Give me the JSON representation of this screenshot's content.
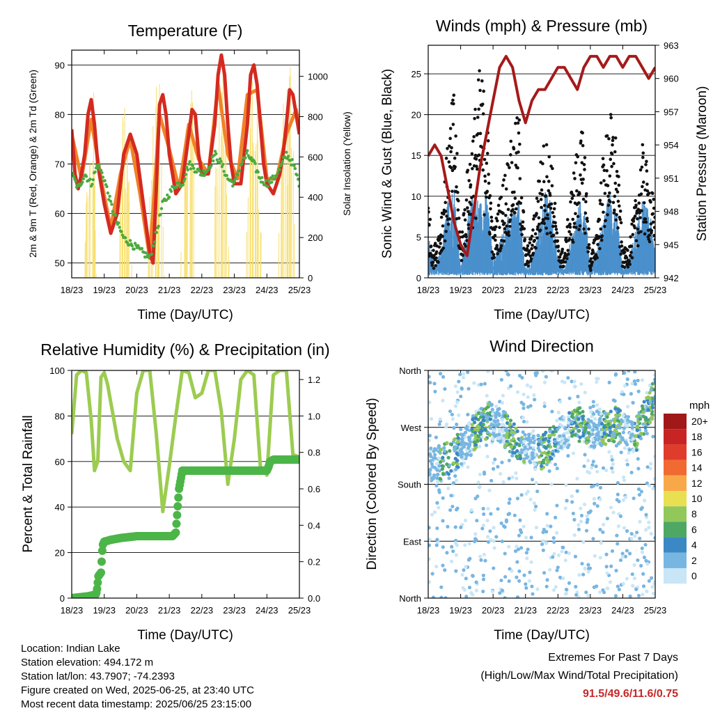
{
  "chart_data": [
    {
      "type": "line",
      "title": "Temperature (F)",
      "xlabel": "Time (Day/UTC)",
      "ylabel": "2m & 9m T (Red, Orange) & 2m Td (Green)",
      "ylabel_right": "Solar Insolation (Yellow)",
      "x_ticks": [
        "18/23",
        "19/23",
        "20/23",
        "21/23",
        "22/23",
        "23/23",
        "24/23",
        "25/23"
      ],
      "xlim": [
        0,
        7
      ],
      "ylim": [
        47,
        93
      ],
      "y_ticks": [
        50,
        60,
        70,
        80,
        90
      ],
      "ylim_right": [
        0,
        1130
      ],
      "y_ticks_right": [
        0,
        200,
        400,
        600,
        800,
        1000
      ],
      "grid": "horizontal",
      "series": [
        {
          "name": "2m T",
          "color": "#d42a20",
          "x": [
            0,
            0.1,
            0.2,
            0.3,
            0.4,
            0.5,
            0.6,
            0.7,
            0.8,
            0.9,
            1.0,
            1.2,
            1.4,
            1.6,
            1.8,
            2.0,
            2.2,
            2.4,
            2.5,
            2.6,
            2.7,
            2.8,
            2.9,
            3.0,
            3.2,
            3.4,
            3.6,
            3.7,
            3.8,
            3.9,
            4.0,
            4.2,
            4.4,
            4.5,
            4.6,
            4.7,
            4.8,
            4.9,
            5.0,
            5.2,
            5.4,
            5.5,
            5.6,
            5.7,
            5.8,
            5.9,
            6.0,
            6.2,
            6.4,
            6.5,
            6.6,
            6.7,
            6.8,
            6.9,
            7.0
          ],
          "values": [
            77,
            68,
            65,
            68,
            72,
            80,
            83,
            78,
            70,
            66,
            62,
            56,
            60,
            72,
            76,
            72,
            62,
            52,
            50,
            65,
            82,
            84,
            80,
            72,
            64,
            66,
            76,
            81,
            80,
            72,
            68,
            68,
            78,
            88,
            92,
            88,
            78,
            70,
            66,
            66,
            78,
            88,
            90,
            86,
            78,
            70,
            66,
            64,
            68,
            72,
            78,
            85,
            84,
            80,
            76
          ]
        },
        {
          "name": "9m T",
          "color": "#f0822a",
          "x": [
            0,
            0.3,
            0.6,
            0.9,
            1.2,
            1.5,
            1.8,
            2.1,
            2.4,
            2.7,
            3.0,
            3.3,
            3.6,
            3.9,
            4.2,
            4.5,
            4.8,
            5.1,
            5.4,
            5.7,
            6.0,
            6.3,
            6.6,
            6.9,
            7.0
          ],
          "values": [
            76,
            67,
            79,
            67,
            57,
            68,
            75,
            64,
            51,
            80,
            73,
            65,
            78,
            71,
            68,
            86,
            72,
            67,
            84,
            85,
            67,
            67,
            76,
            81,
            77
          ]
        },
        {
          "name": "2m Td",
          "color": "#4caa3e",
          "x": [
            0,
            0.2,
            0.4,
            0.6,
            0.8,
            1.0,
            1.2,
            1.4,
            1.6,
            1.8,
            2.0,
            2.2,
            2.4,
            2.6,
            2.8,
            3.0,
            3.2,
            3.4,
            3.6,
            3.8,
            4.0,
            4.2,
            4.4,
            4.6,
            4.8,
            5.0,
            5.2,
            5.4,
            5.6,
            5.8,
            6.0,
            6.2,
            6.4,
            6.6,
            6.8,
            7.0
          ],
          "values": [
            68,
            65,
            68,
            66,
            70,
            67,
            62,
            58,
            55,
            54,
            53,
            52,
            51,
            56,
            62,
            64,
            66,
            66,
            70,
            69,
            68,
            69,
            72,
            70,
            67,
            66,
            70,
            72,
            70,
            67,
            66,
            67,
            69,
            72,
            70,
            66
          ]
        },
        {
          "name": "Solar Insolation",
          "axis": "right",
          "color": "#f8e070",
          "x": [
            0.35,
            0.5,
            0.65,
            0.75,
            1.3,
            1.5,
            1.7,
            1.85,
            2.3,
            2.5,
            2.7,
            2.85,
            3.3,
            3.5,
            3.7,
            3.85,
            4.3,
            4.5,
            4.7,
            4.85,
            5.3,
            5.5,
            5.7,
            5.85,
            6.3,
            6.5,
            6.7,
            6.85,
            6.95
          ],
          "values": [
            0,
            700,
            1100,
            0,
            0,
            720,
            1070,
            0,
            0,
            900,
            1060,
            0,
            0,
            800,
            1000,
            0,
            0,
            1000,
            1050,
            0,
            0,
            1000,
            1050,
            0,
            0,
            900,
            1080,
            600,
            200
          ]
        }
      ]
    },
    {
      "type": "scatter",
      "title": "Winds (mph) & Pressure (mb)",
      "xlabel": "Time (Day/UTC)",
      "ylabel": "Sonic Wind & Gust (Blue, Black)",
      "ylabel_right": "Station Pressure (Maroon)",
      "x_ticks": [
        "18/23",
        "19/23",
        "20/23",
        "21/23",
        "22/23",
        "23/23",
        "24/23",
        "25/23"
      ],
      "xlim": [
        0,
        7
      ],
      "ylim": [
        0,
        28.5
      ],
      "y_ticks": [
        0,
        5,
        10,
        15,
        20,
        25
      ],
      "ylim_right": [
        942,
        963
      ],
      "y_ticks_right": [
        942,
        945,
        948,
        951,
        954,
        957,
        960,
        963
      ],
      "grid": "horizontal",
      "series": [
        {
          "name": "Sonic Wind",
          "color": "#4a90cc",
          "x": [
            0,
            0.2,
            0.4,
            0.6,
            0.8,
            1.0,
            1.2,
            1.4,
            1.6,
            1.8,
            2.0,
            2.2,
            2.4,
            2.6,
            2.8,
            3.0,
            3.2,
            3.4,
            3.6,
            3.8,
            4.0,
            4.2,
            4.4,
            4.6,
            4.8,
            5.0,
            5.2,
            5.4,
            5.6,
            5.8,
            6.0,
            6.2,
            6.4,
            6.6,
            6.8,
            7.0
          ],
          "values": [
            5,
            1,
            3,
            8,
            10,
            1,
            6,
            9,
            8,
            9,
            2,
            4,
            6,
            7,
            8,
            1,
            2,
            5,
            9,
            8,
            2,
            1,
            4,
            7,
            9,
            1,
            3,
            6,
            9,
            7,
            1,
            2,
            5,
            8,
            7,
            4
          ]
        },
        {
          "name": "Gust",
          "color": "#111111",
          "x": [
            0,
            0.15,
            0.35,
            0.6,
            0.8,
            1.0,
            1.2,
            1.4,
            1.6,
            1.8,
            2.0,
            2.2,
            2.4,
            2.6,
            2.8,
            3.0,
            3.2,
            3.4,
            3.6,
            3.8,
            4.0,
            4.2,
            4.4,
            4.6,
            4.8,
            5.0,
            5.2,
            5.4,
            5.6,
            5.8,
            6.0,
            6.2,
            6.4,
            6.6,
            6.8,
            7.0
          ],
          "values": [
            9,
            3,
            6,
            15,
            22,
            4,
            12,
            18,
            24,
            20,
            5,
            9,
            13,
            16,
            19,
            3,
            5,
            12,
            16,
            14,
            4,
            3,
            10,
            15,
            17,
            2,
            6,
            14,
            19,
            16,
            3,
            4,
            9,
            15,
            12,
            8
          ]
        },
        {
          "name": "Station Pressure",
          "axis": "right",
          "color": "#a51a1a",
          "x": [
            0,
            0.2,
            0.4,
            0.6,
            0.8,
            1.0,
            1.2,
            1.4,
            1.6,
            1.8,
            2.0,
            2.2,
            2.4,
            2.6,
            2.8,
            3.0,
            3.2,
            3.4,
            3.6,
            3.8,
            4.0,
            4.2,
            4.4,
            4.6,
            4.8,
            5.0,
            5.2,
            5.4,
            5.6,
            5.8,
            6.0,
            6.2,
            6.4,
            6.6,
            6.8,
            7.0
          ],
          "values": [
            953,
            954,
            953,
            950,
            947,
            945,
            944,
            948,
            952,
            955,
            958,
            961,
            962,
            961,
            958,
            956,
            958,
            959,
            959,
            960,
            961,
            961,
            960,
            959,
            961,
            962,
            962,
            961,
            962,
            962,
            961,
            962,
            962,
            961,
            960,
            961
          ]
        }
      ]
    },
    {
      "type": "line",
      "title": "Relative Humidity (%) & Precipitation (in)",
      "xlabel": "Time (Day/UTC)",
      "ylabel": "Percent & Total Rainfall",
      "x_ticks": [
        "18/23",
        "19/23",
        "20/23",
        "21/23",
        "22/23",
        "23/23",
        "24/23",
        "25/23"
      ],
      "xlim": [
        0,
        7
      ],
      "ylim": [
        0,
        100
      ],
      "y_ticks": [
        0,
        20,
        40,
        60,
        80,
        100
      ],
      "ylim_right": [
        0,
        1.25
      ],
      "y_ticks_right": [
        "0.0",
        "0.2",
        "0.4",
        "0.6",
        "0.8",
        "1.0",
        "1.2"
      ],
      "grid": "horizontal",
      "series": [
        {
          "name": "Relative Humidity",
          "color": "#9ccc50",
          "x": [
            0,
            0.15,
            0.3,
            0.45,
            0.6,
            0.7,
            0.8,
            0.9,
            1.0,
            1.1,
            1.2,
            1.4,
            1.6,
            1.8,
            2.0,
            2.2,
            2.4,
            2.6,
            2.8,
            3.0,
            3.2,
            3.4,
            3.6,
            3.8,
            4.0,
            4.2,
            4.4,
            4.6,
            4.8,
            5.0,
            5.2,
            5.4,
            5.6,
            5.8,
            6.0,
            6.2,
            6.4,
            6.6,
            6.8,
            7.0
          ],
          "values": [
            72,
            98,
            100,
            99,
            78,
            56,
            60,
            97,
            99,
            94,
            86,
            70,
            60,
            56,
            90,
            100,
            100,
            72,
            38,
            58,
            80,
            100,
            99,
            88,
            90,
            100,
            100,
            82,
            50,
            70,
            96,
            100,
            98,
            58,
            54,
            98,
            100,
            100,
            63,
            62
          ]
        },
        {
          "name": "Total Rainfall",
          "axis": "right",
          "color": "#4cb548",
          "x": [
            0,
            0.5,
            0.75,
            0.78,
            0.82,
            0.9,
            0.95,
            1.0,
            1.2,
            1.5,
            2.0,
            2.5,
            3.0,
            3.1,
            3.2,
            3.25,
            3.3,
            3.4,
            3.6,
            4.0,
            4.5,
            5.0,
            5.5,
            6.0,
            6.05,
            6.1,
            6.2,
            6.5,
            7.0
          ],
          "values": [
            0.0,
            0.01,
            0.02,
            0.05,
            0.12,
            0.14,
            0.29,
            0.31,
            0.32,
            0.33,
            0.34,
            0.34,
            0.34,
            0.34,
            0.36,
            0.48,
            0.6,
            0.7,
            0.7,
            0.7,
            0.7,
            0.7,
            0.7,
            0.7,
            0.72,
            0.75,
            0.76,
            0.76,
            0.76
          ]
        }
      ]
    },
    {
      "type": "scatter",
      "title": "Wind Direction",
      "xlabel": "Time (Day/UTC)",
      "ylabel": "Direction (Colored By Speed)",
      "x_ticks": [
        "18/23",
        "19/23",
        "20/23",
        "21/23",
        "22/23",
        "23/23",
        "24/23",
        "25/23"
      ],
      "xlim": [
        0,
        7
      ],
      "y_ticks": [
        "North",
        "East",
        "South",
        "West",
        "North"
      ],
      "ylim": [
        0,
        360
      ],
      "grid": "horizontal",
      "legend": {
        "title": "mph",
        "placement": "right",
        "labels": [
          "20+",
          "18",
          "16",
          "14",
          "12",
          "10",
          "8",
          "6",
          "4",
          "2",
          "0"
        ],
        "colors": [
          "#a01818",
          "#c82424",
          "#e03c2c",
          "#f06a32",
          "#f8a848",
          "#e8e050",
          "#92c85a",
          "#4ea864",
          "#3a88c4",
          "#78b6e2",
          "#c8e6f6"
        ]
      }
    }
  ],
  "footer": {
    "location": "Location: Indian Lake",
    "elevation": "Station elevation: 494.172 m",
    "latlon": "Station lat/lon: 43.7907; -74.2393",
    "created": "Figure created on Wed, 2025-06-25, at 23:40 UTC",
    "recent": "Most recent data timestamp: 2025/06/25 23:15:00"
  },
  "extremes": {
    "title": "Extremes For Past 7 Days",
    "subtitle": "(High/Low/Max Wind/Total Precipitation)",
    "values": "91.5/49.6/11.6/0.75",
    "value_color": "#c62828"
  }
}
